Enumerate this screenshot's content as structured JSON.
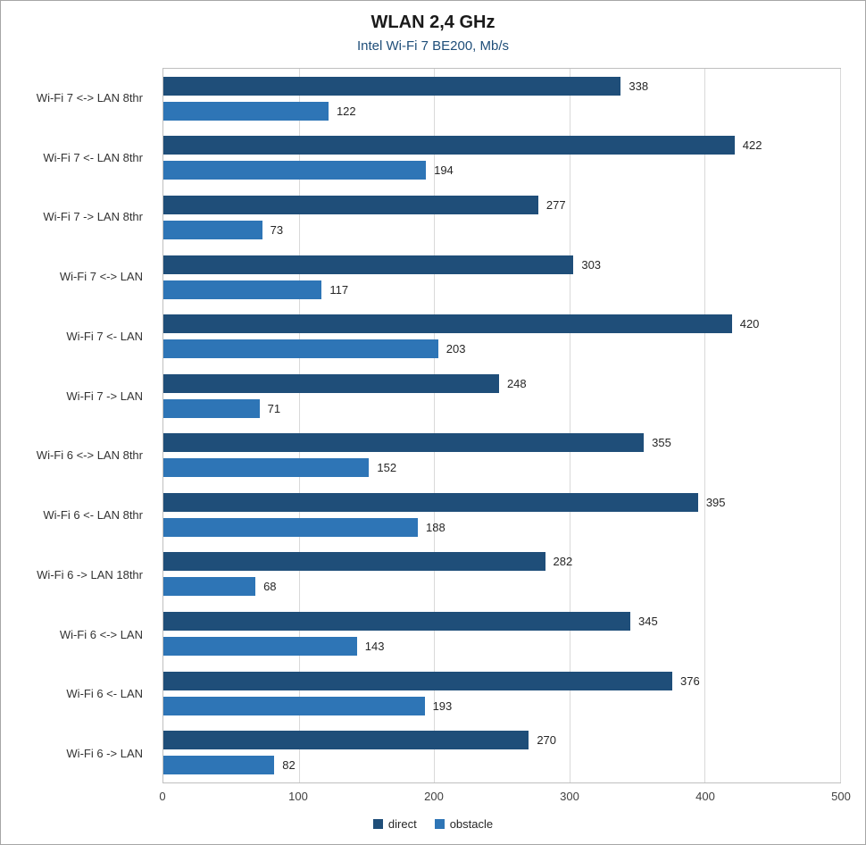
{
  "chart_data": {
    "type": "bar",
    "orientation": "horizontal",
    "title": "WLAN 2,4 GHz",
    "subtitle": "Intel Wi-Fi 7 BE200, Mb/s",
    "categories": [
      "Wi-Fi 7 <-> LAN 8thr",
      "Wi-Fi 7 <- LAN 8thr",
      "Wi-Fi 7 -> LAN 8thr",
      "Wi-Fi 7 <-> LAN",
      "Wi-Fi 7 <- LAN",
      "Wi-Fi 7 -> LAN",
      "Wi-Fi 6 <-> LAN 8thr",
      "Wi-Fi 6 <- LAN 8thr",
      "Wi-Fi 6 -> LAN 18thr",
      "Wi-Fi 6 <-> LAN",
      "Wi-Fi 6 <- LAN",
      "Wi-Fi 6 -> LAN"
    ],
    "series": [
      {
        "name": "direct",
        "color": "#1f4e79",
        "values": [
          338,
          422,
          277,
          303,
          420,
          248,
          355,
          395,
          282,
          345,
          376,
          270
        ]
      },
      {
        "name": "obstacle",
        "color": "#2e75b6",
        "values": [
          122,
          194,
          73,
          117,
          203,
          71,
          152,
          188,
          68,
          143,
          193,
          82
        ]
      }
    ],
    "xlim": [
      0,
      500
    ],
    "xticks": [
      0,
      100,
      200,
      300,
      400,
      500
    ],
    "grid": true,
    "legend_position": "bottom"
  }
}
